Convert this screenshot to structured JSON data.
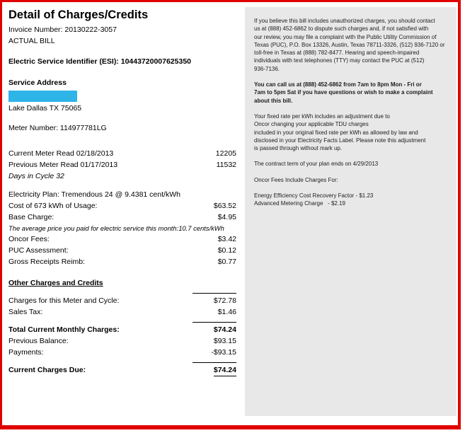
{
  "colors": {
    "frame_red": "#e10000",
    "redaction_blue": "#2fb4e8",
    "panel_gray": "#e8e8e8"
  },
  "bill": {
    "title": "Detail of Charges/Credits",
    "invoice_line": "Invoice Number: 20130222-3057",
    "bill_type": "ACTUAL BILL",
    "esi_line": "Electric Service Identifier (ESI): 10443720007625350",
    "service_address_heading": "Service Address",
    "service_address_city": "Lake Dallas TX 75065",
    "meter_number_line": "Meter Number: 114977781LG",
    "meter_reads": [
      {
        "label": "Current Meter Read 02/18/2013",
        "value": "12205"
      },
      {
        "label": "Previous Meter Read 01/17/2013",
        "value": "11532"
      }
    ],
    "days_in_cycle_note": "Days in Cycle 32",
    "plan_line": "Electricity Plan: Tremendous 24 @ 9.4381 cent/kWh",
    "usage_charges": [
      {
        "label": "Cost of 673 kWh of Usage:",
        "value": "$63.52"
      },
      {
        "label": "Base Charge:",
        "value": "$4.95"
      }
    ],
    "average_price_note": "The average price you paid for electric service this month:10.7 cents/kWh",
    "fee_charges": [
      {
        "label": "Oncor Fees:",
        "value": "$3.42"
      },
      {
        "label": "PUC Assessment:",
        "value": "$0.12"
      },
      {
        "label": "Gross Receipts Reimb:",
        "value": "$0.77"
      }
    ],
    "other_charges_heading": "Other Charges and Credits",
    "cycle_total": {
      "label": "Charges for this Meter and Cycle:",
      "value": "$72.78"
    },
    "sales_tax": {
      "label": "Sales Tax:",
      "value": "$1.46"
    },
    "monthly_total": {
      "label": "Total Current Monthly Charges:",
      "value": "$74.24"
    },
    "previous_balance": {
      "label": "Previous Balance:",
      "value": "$93.15"
    },
    "payments": {
      "label": "Payments:",
      "value": "-$93.15"
    },
    "current_due": {
      "label": "Current Charges Due:",
      "value": "$74.24"
    }
  },
  "info_panel": {
    "puc_complaint": "If you believe this bill includes unauthorized charges, you should contact\nus at (888) 452-6862 to dispute such charges and, if not satisfied with\nour review, you may file a complaint with the Public Utility Commission of\nTexas (PUC), P.O. Box 13326, Austin, Texas 78711-3326, (512) 936-7120 or\ntoll-free in Texas at (888) 782-8477. Hearing and speech-impaired\nindividuals with text telephones (TTY) may contact the PUC at (512)\n936-7136.",
    "call_us": "You can call us at (888) 452-6862 from 7am to 8pm Mon - Fri or\n7am to 5pm Sat if you have questions or wish to make a complaint\nabout this bill.",
    "fixed_rate_adjustment": "Your fixed rate per kWh includes an adjustment due to\nOncor changing your applicable TDU charges\nincluded in your original fixed rate per kWh as allowed by law and\ndisclosed in your Electricity Facts Label. Please note this adjustment\nis passed through without mark up.",
    "contract_term": "The contract term of your plan ends on 4/29/2013",
    "oncor_fees_heading": "Oncor Fees Include Charges For:",
    "oncor_fees_detail": "Energy Efficiency Cost Recovery Factor - $1.23\nAdvanced Metering Charge   - $2.19"
  }
}
